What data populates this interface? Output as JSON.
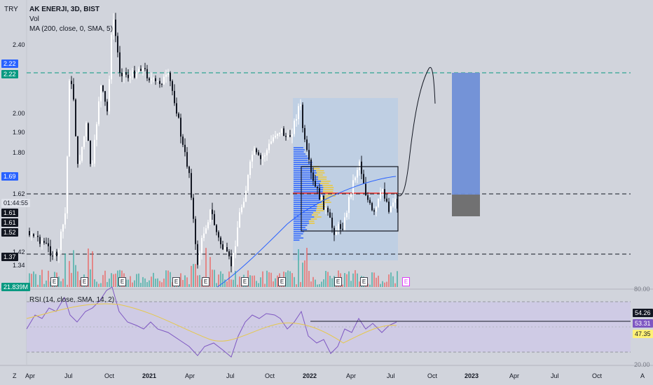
{
  "header": {
    "currency": "TRY",
    "title": "AK ENERJI, 3D, BIST",
    "vol_label": "Vol",
    "ma_label": "MA (200, close, 0, SMA, 5)",
    "rsi_label": "RSI (14, close, SMA, 14, 2)"
  },
  "left_axis": {
    "ticks": [
      "2.40",
      "2.00",
      "1.90",
      "1.80",
      "1.62",
      "1.42",
      "1.34"
    ],
    "tags": [
      {
        "text": "2.22",
        "color": "#2962ff"
      },
      {
        "text": "2.22",
        "color": "#089981"
      },
      {
        "text": "1.69",
        "color": "#2962ff"
      },
      {
        "text": "01:44:55",
        "color": "#e0e3eb",
        "dark": true
      },
      {
        "text": "1.61",
        "color": "#131722"
      },
      {
        "text": "1.61",
        "color": "#131722"
      },
      {
        "text": "1.52",
        "color": "#131722"
      },
      {
        "text": "1.37",
        "color": "#131722"
      },
      {
        "text": "21.839M",
        "color": "#089981"
      }
    ]
  },
  "rsi_axis": {
    "top": "80.00",
    "bottom": "20.00",
    "tags": [
      {
        "text": "54.26",
        "color": "#131722",
        "fg": "#ffffff"
      },
      {
        "text": "53.31",
        "color": "#7e57c2",
        "fg": "#ffffff"
      },
      {
        "text": "47.35",
        "color": "#fff176",
        "fg": "#131722"
      }
    ]
  },
  "time_axis": {
    "corner": "Z",
    "labels": [
      "Apr",
      "Jul",
      "Oct",
      "2021",
      "Apr",
      "Jul",
      "Oct",
      "2022",
      "Apr",
      "Jul",
      "Oct",
      "2023",
      "Apr",
      "Jul",
      "Oct",
      "A"
    ]
  },
  "earnings_label": "E",
  "colors": {
    "up": "#ffffff",
    "down": "#131722",
    "vol_up": "#26a69a",
    "vol_down": "#ef5350",
    "ma": "#2962ff",
    "rsi": "#7e57c2",
    "rsi_ma": "#e6c84a",
    "target_box": "#6f8fd6",
    "stop_box": "#6b6b6b",
    "profile_box": "#b8cde6"
  }
}
